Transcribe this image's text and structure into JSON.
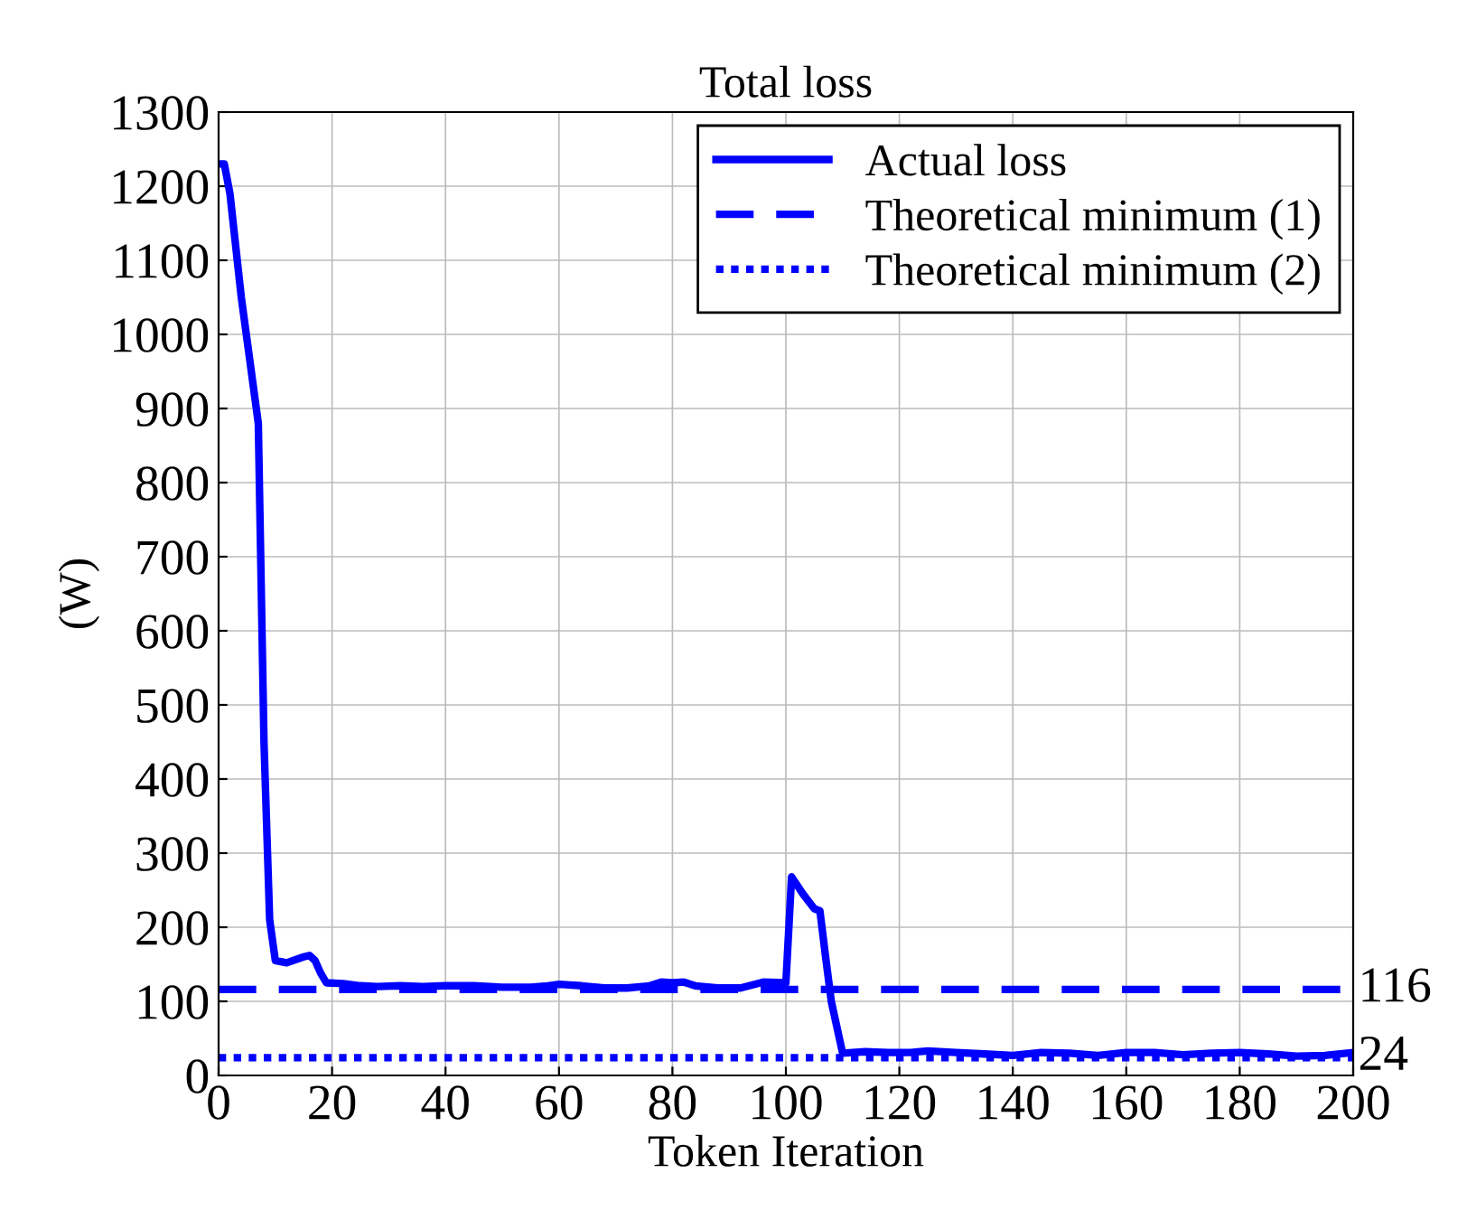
{
  "chart_data": {
    "type": "line",
    "title": "Total loss",
    "xlabel": "Token Iteration",
    "ylabel": "(W)",
    "xlim": [
      0,
      200
    ],
    "xticks": [
      0,
      20,
      40,
      60,
      80,
      100,
      120,
      140,
      160,
      180,
      200
    ],
    "ylim": [
      0,
      1300
    ],
    "yticks": [
      0,
      100,
      200,
      300,
      400,
      500,
      600,
      700,
      800,
      900,
      1000,
      1100,
      1200,
      1300
    ],
    "grid": true,
    "legend": "top right",
    "series": [
      {
        "name": "Actual loss",
        "color": "#0000ff",
        "line_style": "solid",
        "x": [
          0,
          1,
          2,
          4,
          7,
          8,
          9,
          10,
          12,
          15,
          16,
          17,
          18,
          19,
          22,
          25,
          28,
          32,
          36,
          40,
          45,
          50,
          55,
          58,
          60,
          64,
          68,
          72,
          76,
          78,
          80,
          82,
          84,
          88,
          92,
          96,
          100,
          101,
          103,
          105,
          106,
          107,
          108,
          110,
          114,
          118,
          122,
          125,
          130,
          135,
          140,
          145,
          150,
          155,
          160,
          165,
          170,
          175,
          180,
          185,
          190,
          195,
          200
        ],
        "values": [
          1230,
          1230,
          1190,
          1050,
          880,
          450,
          210,
          155,
          152,
          160,
          162,
          155,
          138,
          125,
          124,
          121,
          120,
          121,
          120,
          121,
          121,
          119,
          119,
          121,
          123,
          121,
          118,
          118,
          121,
          126,
          125,
          126,
          121,
          118,
          118,
          126,
          125,
          268,
          245,
          225,
          222,
          160,
          100,
          30,
          32,
          31,
          31,
          33,
          31,
          29,
          27,
          31,
          30,
          27,
          31,
          31,
          28,
          30,
          31,
          29,
          26,
          27,
          31
        ]
      },
      {
        "name": "Theoretical minimum (1)",
        "color": "#0000ff",
        "line_style": "dashed",
        "x": [
          0,
          200
        ],
        "values": [
          116,
          116
        ]
      },
      {
        "name": "Theoretical minimum (2)",
        "color": "#0000ff",
        "line_style": "dotted",
        "x": [
          0,
          200
        ],
        "values": [
          24,
          24
        ]
      }
    ],
    "annotations": [
      {
        "text": "116",
        "x": 200,
        "y": 116
      },
      {
        "text": "24",
        "x": 200,
        "y": 24
      }
    ]
  }
}
